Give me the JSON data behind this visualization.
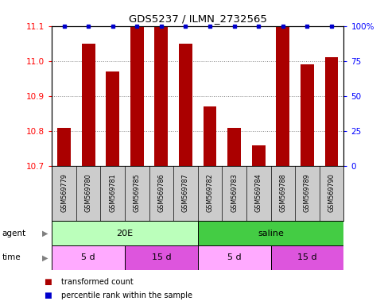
{
  "title": "GDS5237 / ILMN_2732565",
  "samples": [
    "GSM569779",
    "GSM569780",
    "GSM569781",
    "GSM569785",
    "GSM569786",
    "GSM569787",
    "GSM569782",
    "GSM569783",
    "GSM569784",
    "GSM569788",
    "GSM569789",
    "GSM569790"
  ],
  "bar_values": [
    10.81,
    11.05,
    10.97,
    11.12,
    11.1,
    11.05,
    10.87,
    10.81,
    10.76,
    11.12,
    10.99,
    11.01
  ],
  "percentile_values": [
    100,
    100,
    100,
    100,
    100,
    100,
    100,
    100,
    100,
    100,
    100,
    100
  ],
  "bar_color": "#aa0000",
  "dot_color": "#0000cc",
  "ylim_left": [
    10.7,
    11.1
  ],
  "ylim_right": [
    0,
    100
  ],
  "yticks_left": [
    10.7,
    10.8,
    10.9,
    11.0,
    11.1
  ],
  "yticks_right": [
    0,
    25,
    50,
    75,
    100
  ],
  "agent_groups": [
    {
      "label": "20E",
      "start": 0,
      "end": 6,
      "color": "#bbffbb"
    },
    {
      "label": "saline",
      "start": 6,
      "end": 12,
      "color": "#44cc44"
    }
  ],
  "time_groups": [
    {
      "label": "5 d",
      "start": 0,
      "end": 3,
      "color": "#ffaaff"
    },
    {
      "label": "15 d",
      "start": 3,
      "end": 6,
      "color": "#dd55dd"
    },
    {
      "label": "5 d",
      "start": 6,
      "end": 9,
      "color": "#ffaaff"
    },
    {
      "label": "15 d",
      "start": 9,
      "end": 12,
      "color": "#dd55dd"
    }
  ],
  "sample_bg_color": "#cccccc",
  "legend_items": [
    {
      "label": "transformed count",
      "color": "#aa0000"
    },
    {
      "label": "percentile rank within the sample",
      "color": "#0000cc"
    }
  ],
  "background_color": "#ffffff",
  "grid_color": "#888888"
}
